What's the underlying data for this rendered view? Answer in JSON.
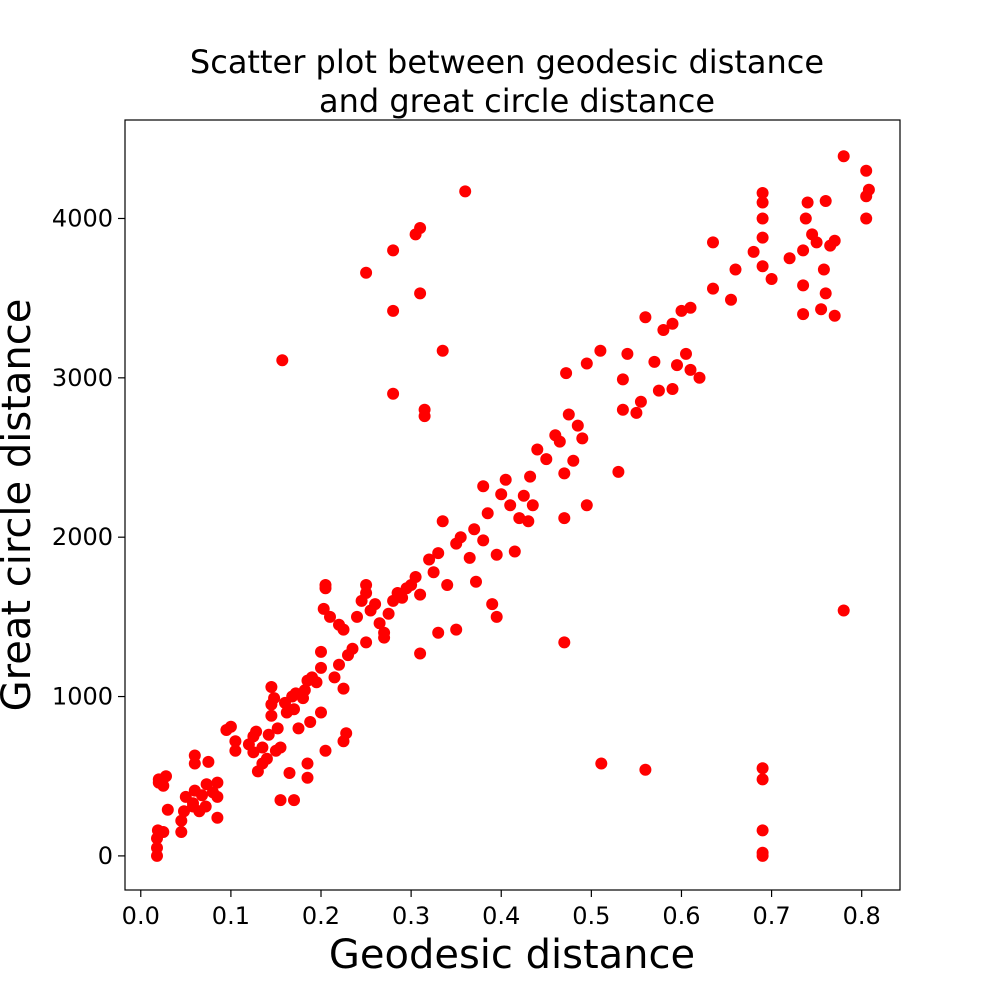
{
  "chart_data": {
    "type": "scatter",
    "title_lines": [
      "Scatter plot between geodesic distance",
      "and great circle distance"
    ],
    "xlabel": "Geodesic distance",
    "ylabel": "Great circle distance",
    "xlim": [
      -0.0175,
      0.8425
    ],
    "ylim": [
      -214,
      4618
    ],
    "xticks": [
      0.0,
      0.1,
      0.2,
      0.3,
      0.4,
      0.5,
      0.6,
      0.7,
      0.8
    ],
    "xtick_labels": [
      "0.0",
      "0.1",
      "0.2",
      "0.3",
      "0.4",
      "0.5",
      "0.6",
      "0.7",
      "0.8"
    ],
    "yticks": [
      0,
      1000,
      2000,
      3000,
      4000
    ],
    "ytick_labels": [
      "0",
      "1000",
      "2000",
      "3000",
      "4000"
    ],
    "grid": false,
    "marker_color": "#ff0000",
    "points": [
      [
        0.018,
        0
      ],
      [
        0.018,
        50
      ],
      [
        0.018,
        110
      ],
      [
        0.019,
        160
      ],
      [
        0.025,
        150
      ],
      [
        0.02,
        460
      ],
      [
        0.02,
        480
      ],
      [
        0.028,
        500
      ],
      [
        0.025,
        440
      ],
      [
        0.03,
        290
      ],
      [
        0.045,
        150
      ],
      [
        0.045,
        220
      ],
      [
        0.048,
        280
      ],
      [
        0.05,
        370
      ],
      [
        0.058,
        310
      ],
      [
        0.058,
        330
      ],
      [
        0.06,
        410
      ],
      [
        0.06,
        580
      ],
      [
        0.06,
        630
      ],
      [
        0.065,
        280
      ],
      [
        0.068,
        380
      ],
      [
        0.072,
        310
      ],
      [
        0.073,
        450
      ],
      [
        0.08,
        400
      ],
      [
        0.085,
        370
      ],
      [
        0.085,
        240
      ],
      [
        0.085,
        460
      ],
      [
        0.075,
        590
      ],
      [
        0.095,
        790
      ],
      [
        0.1,
        810
      ],
      [
        0.105,
        660
      ],
      [
        0.105,
        720
      ],
      [
        0.12,
        700
      ],
      [
        0.125,
        650
      ],
      [
        0.125,
        750
      ],
      [
        0.128,
        780
      ],
      [
        0.13,
        530
      ],
      [
        0.135,
        580
      ],
      [
        0.135,
        680
      ],
      [
        0.14,
        610
      ],
      [
        0.142,
        760
      ],
      [
        0.145,
        880
      ],
      [
        0.145,
        950
      ],
      [
        0.145,
        1060
      ],
      [
        0.148,
        990
      ],
      [
        0.15,
        660
      ],
      [
        0.152,
        800
      ],
      [
        0.155,
        680
      ],
      [
        0.155,
        350
      ],
      [
        0.157,
        3110
      ],
      [
        0.16,
        960
      ],
      [
        0.162,
        900
      ],
      [
        0.165,
        520
      ],
      [
        0.168,
        1000
      ],
      [
        0.17,
        920
      ],
      [
        0.17,
        350
      ],
      [
        0.172,
        1020
      ],
      [
        0.175,
        800
      ],
      [
        0.18,
        990
      ],
      [
        0.182,
        1040
      ],
      [
        0.185,
        580
      ],
      [
        0.185,
        490
      ],
      [
        0.185,
        1100
      ],
      [
        0.188,
        840
      ],
      [
        0.19,
        1120
      ],
      [
        0.195,
        1090
      ],
      [
        0.2,
        900
      ],
      [
        0.2,
        1180
      ],
      [
        0.2,
        1280
      ],
      [
        0.203,
        1550
      ],
      [
        0.205,
        1680
      ],
      [
        0.205,
        1700
      ],
      [
        0.205,
        660
      ],
      [
        0.21,
        1500
      ],
      [
        0.215,
        1120
      ],
      [
        0.22,
        1200
      ],
      [
        0.22,
        1450
      ],
      [
        0.225,
        1420
      ],
      [
        0.225,
        1050
      ],
      [
        0.225,
        720
      ],
      [
        0.228,
        770
      ],
      [
        0.23,
        1260
      ],
      [
        0.235,
        1300
      ],
      [
        0.24,
        1500
      ],
      [
        0.245,
        1600
      ],
      [
        0.25,
        1650
      ],
      [
        0.25,
        1700
      ],
      [
        0.25,
        3660
      ],
      [
        0.25,
        1340
      ],
      [
        0.255,
        1540
      ],
      [
        0.26,
        1580
      ],
      [
        0.265,
        1460
      ],
      [
        0.27,
        1400
      ],
      [
        0.27,
        1370
      ],
      [
        0.275,
        1520
      ],
      [
        0.28,
        1600
      ],
      [
        0.28,
        2900
      ],
      [
        0.28,
        3420
      ],
      [
        0.28,
        3800
      ],
      [
        0.285,
        1650
      ],
      [
        0.29,
        1620
      ],
      [
        0.295,
        1680
      ],
      [
        0.3,
        1700
      ],
      [
        0.305,
        1750
      ],
      [
        0.305,
        3900
      ],
      [
        0.31,
        3940
      ],
      [
        0.31,
        3530
      ],
      [
        0.31,
        1640
      ],
      [
        0.31,
        1270
      ],
      [
        0.315,
        2800
      ],
      [
        0.315,
        2760
      ],
      [
        0.32,
        1860
      ],
      [
        0.325,
        1780
      ],
      [
        0.33,
        1900
      ],
      [
        0.33,
        1400
      ],
      [
        0.335,
        3170
      ],
      [
        0.335,
        2100
      ],
      [
        0.34,
        1700
      ],
      [
        0.35,
        1420
      ],
      [
        0.35,
        1960
      ],
      [
        0.355,
        2000
      ],
      [
        0.36,
        4170
      ],
      [
        0.365,
        1870
      ],
      [
        0.37,
        2050
      ],
      [
        0.372,
        1720
      ],
      [
        0.38,
        1980
      ],
      [
        0.38,
        2320
      ],
      [
        0.385,
        2150
      ],
      [
        0.39,
        1580
      ],
      [
        0.395,
        1500
      ],
      [
        0.395,
        1890
      ],
      [
        0.4,
        2270
      ],
      [
        0.405,
        2360
      ],
      [
        0.41,
        2200
      ],
      [
        0.415,
        1910
      ],
      [
        0.42,
        2120
      ],
      [
        0.425,
        2260
      ],
      [
        0.43,
        2100
      ],
      [
        0.432,
        2380
      ],
      [
        0.435,
        2200
      ],
      [
        0.44,
        2550
      ],
      [
        0.45,
        2490
      ],
      [
        0.46,
        2640
      ],
      [
        0.465,
        2600
      ],
      [
        0.47,
        1340
      ],
      [
        0.47,
        2120
      ],
      [
        0.47,
        2400
      ],
      [
        0.472,
        3030
      ],
      [
        0.475,
        2770
      ],
      [
        0.48,
        2480
      ],
      [
        0.485,
        2700
      ],
      [
        0.49,
        2620
      ],
      [
        0.495,
        2200
      ],
      [
        0.495,
        3090
      ],
      [
        0.51,
        3170
      ],
      [
        0.511,
        580
      ],
      [
        0.53,
        2410
      ],
      [
        0.535,
        2800
      ],
      [
        0.535,
        2990
      ],
      [
        0.54,
        3150
      ],
      [
        0.55,
        2780
      ],
      [
        0.555,
        2850
      ],
      [
        0.56,
        540
      ],
      [
        0.56,
        3380
      ],
      [
        0.57,
        3100
      ],
      [
        0.575,
        2920
      ],
      [
        0.58,
        3300
      ],
      [
        0.59,
        3340
      ],
      [
        0.59,
        2930
      ],
      [
        0.595,
        3080
      ],
      [
        0.6,
        3420
      ],
      [
        0.605,
        3150
      ],
      [
        0.61,
        3050
      ],
      [
        0.61,
        3440
      ],
      [
        0.62,
        3000
      ],
      [
        0.635,
        3560
      ],
      [
        0.635,
        3850
      ],
      [
        0.655,
        3490
      ],
      [
        0.66,
        3680
      ],
      [
        0.68,
        3790
      ],
      [
        0.69,
        0
      ],
      [
        0.69,
        20
      ],
      [
        0.69,
        160
      ],
      [
        0.69,
        480
      ],
      [
        0.69,
        550
      ],
      [
        0.69,
        3700
      ],
      [
        0.69,
        3880
      ],
      [
        0.69,
        4000
      ],
      [
        0.69,
        4100
      ],
      [
        0.69,
        4160
      ],
      [
        0.7,
        3620
      ],
      [
        0.72,
        3750
      ],
      [
        0.735,
        3400
      ],
      [
        0.735,
        3580
      ],
      [
        0.735,
        3800
      ],
      [
        0.738,
        4000
      ],
      [
        0.74,
        4100
      ],
      [
        0.745,
        3900
      ],
      [
        0.75,
        3850
      ],
      [
        0.755,
        3430
      ],
      [
        0.758,
        3680
      ],
      [
        0.76,
        3530
      ],
      [
        0.76,
        4110
      ],
      [
        0.765,
        3830
      ],
      [
        0.77,
        3860
      ],
      [
        0.77,
        3390
      ],
      [
        0.78,
        1540
      ],
      [
        0.78,
        4390
      ],
      [
        0.805,
        4000
      ],
      [
        0.805,
        4140
      ],
      [
        0.805,
        4300
      ],
      [
        0.808,
        4180
      ]
    ]
  }
}
